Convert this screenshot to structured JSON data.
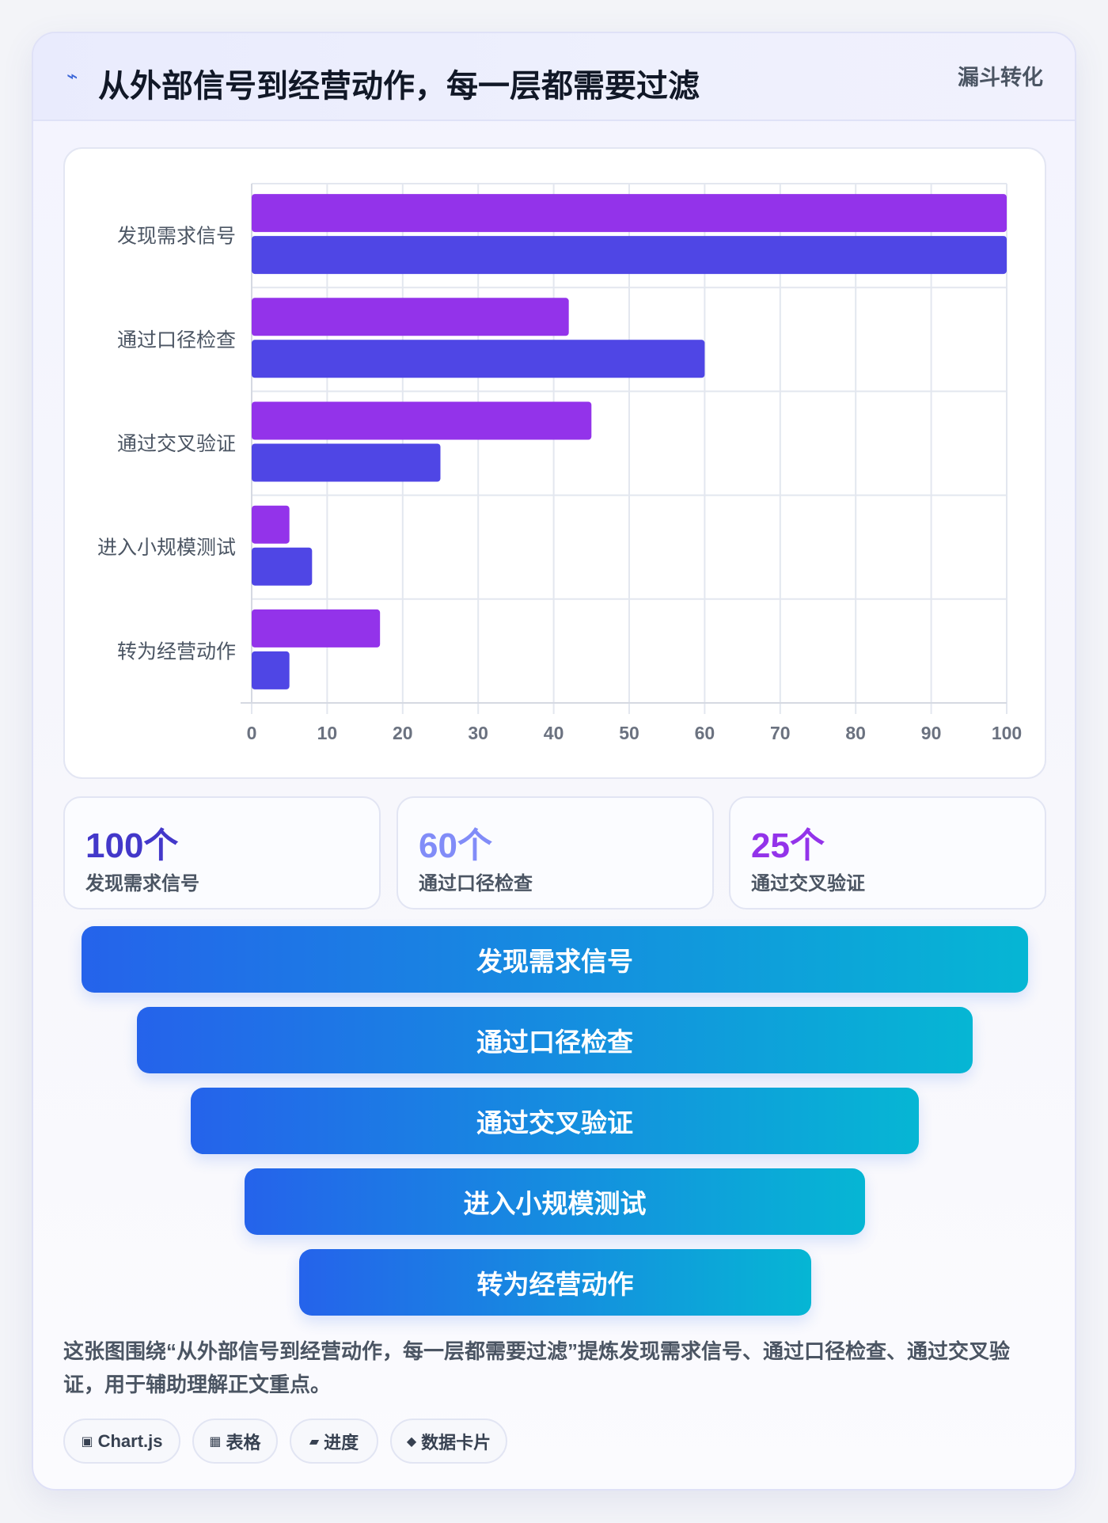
{
  "header": {
    "icon": "lightning-icon",
    "title": "从外部信号到经营动作，每一层都需要过滤",
    "tag": "漏斗转化"
  },
  "colors": {
    "series_a": "#9333ea",
    "series_b": "#4f46e5",
    "funnel_start": "#2563eb",
    "funnel_end": "#06b6d4",
    "stat_1": "#4338ca",
    "stat_2": "#818cf8",
    "stat_3": "#9333ea"
  },
  "chart_data": {
    "type": "bar",
    "orientation": "horizontal",
    "categories": [
      "发现需求信号",
      "通过口径检查",
      "通过交叉验证",
      "进入小规模测试",
      "转为经营动作"
    ],
    "series": [
      {
        "values": [
          100,
          42,
          45,
          5,
          17
        ],
        "color": "#9333ea"
      },
      {
        "values": [
          100,
          60,
          25,
          8,
          5
        ],
        "color": "#4f46e5"
      }
    ],
    "x_ticks": [
      "0",
      "10",
      "20",
      "30",
      "40",
      "50",
      "60",
      "70",
      "80",
      "90",
      "100"
    ],
    "xlim": [
      0,
      100
    ],
    "grid": true,
    "legend": "none"
  },
  "stats": [
    {
      "value": "100个",
      "label": "发现需求信号"
    },
    {
      "value": "60个",
      "label": "通过口径检查"
    },
    {
      "value": "25个",
      "label": "通过交叉验证"
    }
  ],
  "funnel": [
    {
      "label": "发现需求信号"
    },
    {
      "label": "通过口径检查"
    },
    {
      "label": "通过交叉验证"
    },
    {
      "label": "进入小规模测试"
    },
    {
      "label": "转为经营动作"
    }
  ],
  "note": "这张图围绕“从外部信号到经营动作，每一层都需要过滤”提炼发现需求信号、通过口径检查、通过交叉验证，用于辅助理解正文重点。",
  "chips": [
    {
      "icon": "chart-icon",
      "glyph": "▣",
      "label": "Chart.js"
    },
    {
      "icon": "table-icon",
      "glyph": "▦",
      "label": "表格"
    },
    {
      "icon": "progress-icon",
      "glyph": "▰",
      "label": "进度"
    },
    {
      "icon": "diamond-icon",
      "glyph": "◆",
      "label": "数据卡片"
    }
  ]
}
